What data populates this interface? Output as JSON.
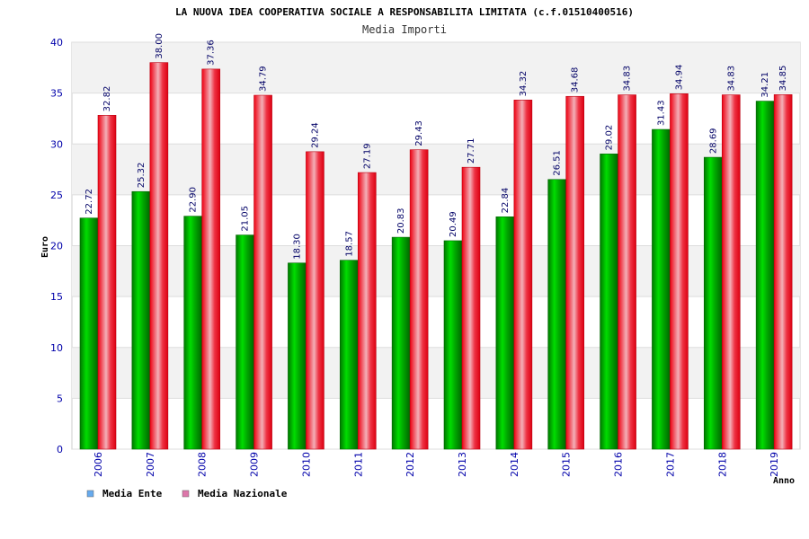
{
  "chart_data": {
    "type": "bar",
    "title": "LA NUOVA IDEA COOPERATIVA SOCIALE A RESPONSABILITA LIMITATA (c.f.01510400516)",
    "subtitle": "Media Importi",
    "xlabel": "Anno",
    "ylabel": "Euro",
    "ylim": [
      0,
      40
    ],
    "yticks": [
      0,
      5,
      10,
      15,
      20,
      25,
      30,
      35,
      40
    ],
    "categories": [
      "2006",
      "2007",
      "2008",
      "2009",
      "2010",
      "2011",
      "2012",
      "2013",
      "2014",
      "2015",
      "2016",
      "2017",
      "2018",
      "2019"
    ],
    "series": [
      {
        "name": "Media Ente",
        "values": [
          22.72,
          25.32,
          22.9,
          21.05,
          18.3,
          18.57,
          20.83,
          20.49,
          22.84,
          26.51,
          29.02,
          31.43,
          28.69,
          34.21
        ],
        "labels": [
          "22.72",
          "25.32",
          "22.90",
          "21.05",
          "18.30",
          "18.57",
          "20.83",
          "20.49",
          "22.84",
          "26.51",
          "29.02",
          "31.43",
          "28.69",
          "34.21"
        ],
        "color": "#00bb00",
        "legend_color": "#66aaee"
      },
      {
        "name": "Media Nazionale",
        "values": [
          32.82,
          38.0,
          37.36,
          34.79,
          29.24,
          27.19,
          29.43,
          27.71,
          34.32,
          34.68,
          34.83,
          34.94,
          34.83,
          34.85
        ],
        "labels": [
          "32.82",
          "38.00",
          "37.36",
          "34.79",
          "29.24",
          "27.19",
          "29.43",
          "27.71",
          "34.32",
          "34.68",
          "34.83",
          "34.94",
          "34.83",
          "34.85"
        ],
        "color": "#ee1122",
        "legend_color": "#dd77aa"
      }
    ],
    "grid": true,
    "legend_position": "bottom-left"
  }
}
